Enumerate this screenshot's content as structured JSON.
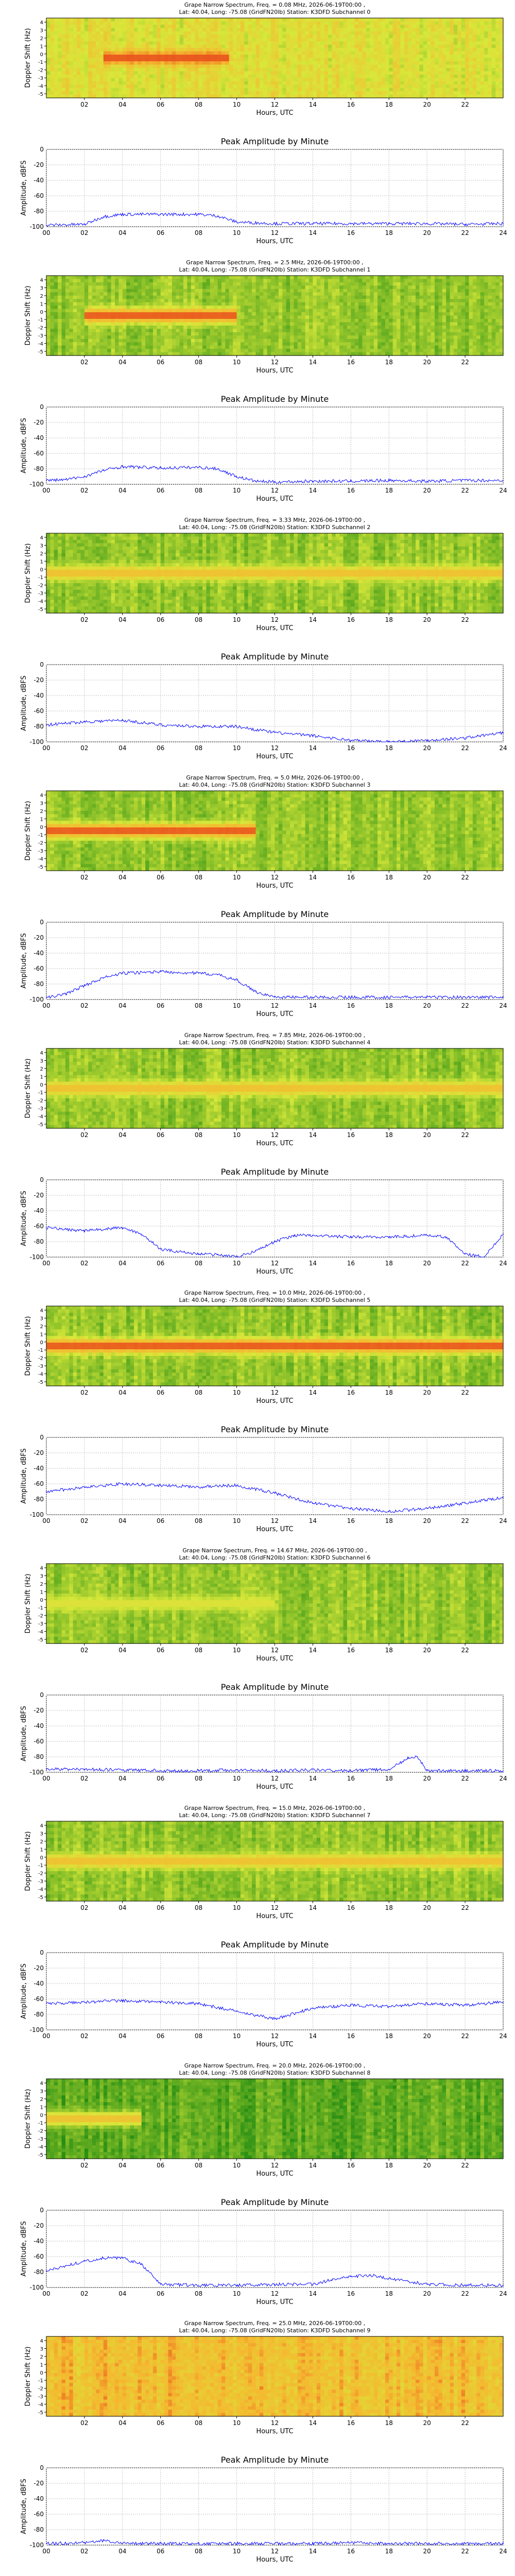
{
  "common": {
    "spec_hours": [
      "02",
      "04",
      "06",
      "08",
      "10",
      "12",
      "14",
      "16",
      "18",
      "20",
      "22"
    ],
    "spec_yticks": [
      "4",
      "3",
      "2",
      "1",
      "0",
      "-1",
      "-2",
      "-3",
      "-4",
      "-5"
    ],
    "spec_ylabel": "Doppler Shift (Hz)",
    "xlabel": "Hours, UTC",
    "amp_title": "Peak Amplitude by Minute",
    "amp_ylabel": "Amplitude, dBFS",
    "amp_yticks": [
      "0",
      "-20",
      "-40",
      "-60",
      "-80",
      "-100"
    ],
    "amp_xticks": [
      "00",
      "02",
      "04",
      "06",
      "08",
      "10",
      "12",
      "14",
      "16",
      "18",
      "20",
      "22",
      "24"
    ],
    "title_line2": "Lat:  40.04, Long: -75.08 (GridFN20lb) Station: K3DFD"
  },
  "colors": {
    "spec_low": "#1f8a12",
    "spec_mid": "#d8e83a",
    "spec_high": "#f5b830",
    "spec_peak": "#e8501c",
    "amp_line": "#0000ff",
    "grid": "#bfbfbf"
  },
  "panels": [
    {
      "freq_line": "Grape Narrow Spectrum, Freq. = 0.08 MHz, 2026-06-19T00:00 ,",
      "subchannel": "Subchannel 0"
    },
    {
      "freq_line": "Grape Narrow Spectrum, Freq. = 2.5 MHz, 2026-06-19T00:00 ,",
      "subchannel": "Subchannel 1"
    },
    {
      "freq_line": "Grape Narrow Spectrum, Freq. = 3.33 MHz, 2026-06-19T00:00 ,",
      "subchannel": "Subchannel 2"
    },
    {
      "freq_line": "Grape Narrow Spectrum, Freq. = 5.0 MHz, 2026-06-19T00:00 ,",
      "subchannel": "Subchannel 3"
    },
    {
      "freq_line": "Grape Narrow Spectrum, Freq. = 7.85 MHz, 2026-06-19T00:00 ,",
      "subchannel": "Subchannel 4"
    },
    {
      "freq_line": "Grape Narrow Spectrum, Freq. = 10.0 MHz, 2026-06-19T00:00 ,",
      "subchannel": "Subchannel 5"
    },
    {
      "freq_line": "Grape Narrow Spectrum, Freq. = 14.67 MHz, 2026-06-19T00:00 ,",
      "subchannel": "Subchannel 6"
    },
    {
      "freq_line": "Grape Narrow Spectrum, Freq. = 15.0 MHz, 2026-06-19T00:00 ,",
      "subchannel": "Subchannel 7"
    },
    {
      "freq_line": "Grape Narrow Spectrum, Freq. = 20.0 MHz, 2026-06-19T00:00 ,",
      "subchannel": "Subchannel 8"
    },
    {
      "freq_line": "Grape Narrow Spectrum, Freq. = 25.0 MHz, 2026-06-19T00:00 ,",
      "subchannel": "Subchannel 9"
    }
  ],
  "chart_data": [
    {
      "type": "heatmap",
      "title": "Grape Narrow Spectrum, Freq. = 0.08 MHz, 2026-06-19T00:00 ,",
      "xlabel": "Hours, UTC",
      "ylabel": "Doppler Shift (Hz)",
      "xlim": [
        0,
        24
      ],
      "ylim": [
        -5,
        5
      ],
      "background": "yellow-green",
      "signal": {
        "doppler_hz": 0,
        "start_hr": 3,
        "end_hr": 9.5,
        "intensity": "high"
      }
    },
    {
      "type": "line",
      "title": "Peak Amplitude by Minute",
      "xlabel": "Hours, UTC",
      "ylabel": "Amplitude, dBFS",
      "ylim": [
        -100,
        0
      ],
      "x": [
        0,
        2,
        3,
        4,
        6,
        8,
        9,
        10,
        12,
        14,
        16,
        18,
        20,
        22,
        24
      ],
      "y": [
        -98,
        -97,
        -87,
        -84,
        -84,
        -84,
        -86,
        -94,
        -96,
        -96,
        -96,
        -96,
        -96,
        -97,
        -96
      ]
    },
    {
      "type": "heatmap",
      "title": "Grape Narrow Spectrum, Freq. = 2.5 MHz, 2026-06-19T00:00 ,",
      "xlabel": "Hours, UTC",
      "ylabel": "Doppler Shift (Hz)",
      "xlim": [
        0,
        24
      ],
      "ylim": [
        -5,
        5
      ],
      "background": "green",
      "signal": {
        "doppler_hz": 0,
        "start_hr": 2,
        "end_hr": 10,
        "intensity": "high"
      }
    },
    {
      "type": "line",
      "title": "Peak Amplitude by Minute",
      "xlabel": "Hours, UTC",
      "ylabel": "Amplitude, dBFS",
      "ylim": [
        -100,
        0
      ],
      "x": [
        0,
        1,
        2,
        3,
        4,
        6,
        8,
        9,
        10,
        11,
        12,
        14,
        16,
        18,
        20,
        22,
        24
      ],
      "y": [
        -95,
        -94,
        -90,
        -82,
        -77,
        -79,
        -78,
        -80,
        -90,
        -96,
        -97,
        -96,
        -96,
        -95,
        -96,
        -95,
        -95
      ]
    },
    {
      "type": "heatmap",
      "title": "Grape Narrow Spectrum, Freq. = 3.33 MHz, 2026-06-19T00:00 ,",
      "xlabel": "Hours, UTC",
      "ylabel": "Doppler Shift (Hz)",
      "xlim": [
        0,
        24
      ],
      "ylim": [
        -5,
        5
      ],
      "background": "green",
      "signal": {
        "doppler_hz": 0,
        "start_hr": 0,
        "end_hr": 24,
        "intensity": "medium"
      }
    },
    {
      "type": "line",
      "title": "Peak Amplitude by Minute",
      "xlabel": "Hours, UTC",
      "ylabel": "Amplitude, dBFS",
      "ylim": [
        -100,
        0
      ],
      "x": [
        0,
        2,
        4,
        6,
        8,
        10,
        12,
        14,
        16,
        18,
        20,
        22,
        24
      ],
      "y": [
        -78,
        -74,
        -72,
        -78,
        -80,
        -80,
        -88,
        -92,
        -98,
        -100,
        -98,
        -95,
        -88
      ]
    },
    {
      "type": "heatmap",
      "title": "Grape Narrow Spectrum, Freq. = 5.0 MHz, 2026-06-19T00:00 ,",
      "xlabel": "Hours, UTC",
      "ylabel": "Doppler Shift (Hz)",
      "xlim": [
        0,
        24
      ],
      "ylim": [
        -5,
        5
      ],
      "background": "green",
      "signal": {
        "doppler_hz": 0,
        "start_hr": 0,
        "end_hr": 11,
        "intensity": "high"
      }
    },
    {
      "type": "line",
      "title": "Peak Amplitude by Minute",
      "xlabel": "Hours, UTC",
      "ylabel": "Amplitude, dBFS",
      "ylim": [
        -100,
        0
      ],
      "x": [
        0,
        1,
        2,
        3,
        4,
        6,
        8,
        9,
        10,
        11,
        12,
        14,
        16,
        18,
        20,
        22,
        24
      ],
      "y": [
        -98,
        -93,
        -82,
        -72,
        -66,
        -64,
        -66,
        -68,
        -75,
        -90,
        -97,
        -97,
        -97,
        -97,
        -97,
        -97,
        -97
      ]
    },
    {
      "type": "heatmap",
      "title": "Grape Narrow Spectrum, Freq. = 7.85 MHz, 2026-06-19T00:00 ,",
      "xlabel": "Hours, UTC",
      "ylabel": "Doppler Shift (Hz)",
      "xlim": [
        0,
        24
      ],
      "ylim": [
        -5,
        5
      ],
      "background": "green",
      "signal": {
        "doppler_hz": 0,
        "start_hr": 0,
        "end_hr": 24,
        "intensity": "medium"
      }
    },
    {
      "type": "line",
      "title": "Peak Amplitude by Minute",
      "xlabel": "Hours, UTC",
      "ylabel": "Amplitude, dBFS",
      "ylim": [
        -100,
        0
      ],
      "x": [
        0,
        2,
        4,
        5,
        6,
        8,
        9,
        10,
        11,
        12,
        13,
        14,
        16,
        18,
        20,
        21,
        22,
        23,
        24
      ],
      "y": [
        -62,
        -66,
        -62,
        -70,
        -90,
        -96,
        -97,
        -100,
        -92,
        -80,
        -72,
        -72,
        -74,
        -74,
        -72,
        -74,
        -96,
        -100,
        -70
      ]
    },
    {
      "type": "heatmap",
      "title": "Grape Narrow Spectrum, Freq. = 10.0 MHz, 2026-06-19T00:00 ,",
      "xlabel": "Hours, UTC",
      "ylabel": "Doppler Shift (Hz)",
      "xlim": [
        0,
        24
      ],
      "ylim": [
        -5,
        5
      ],
      "background": "green",
      "signal": {
        "doppler_hz": 0,
        "start_hr": 0,
        "end_hr": 24,
        "intensity": "high"
      }
    },
    {
      "type": "line",
      "title": "Peak Amplitude by Minute",
      "xlabel": "Hours, UTC",
      "ylabel": "Amplitude, dBFS",
      "ylim": [
        -100,
        0
      ],
      "x": [
        0,
        2,
        4,
        6,
        8,
        10,
        12,
        14,
        16,
        18,
        20,
        22,
        24
      ],
      "y": [
        -70,
        -65,
        -60,
        -62,
        -64,
        -62,
        -72,
        -85,
        -92,
        -96,
        -92,
        -85,
        -78
      ]
    },
    {
      "type": "heatmap",
      "title": "Grape Narrow Spectrum, Freq. = 14.67 MHz, 2026-06-19T00:00 ,",
      "xlabel": "Hours, UTC",
      "ylabel": "Doppler Shift (Hz)",
      "xlim": [
        0,
        24
      ],
      "ylim": [
        -5,
        5
      ],
      "background": "green",
      "signal": {
        "doppler_hz": 0,
        "start_hr": 0,
        "end_hr": 12,
        "intensity": "low"
      }
    },
    {
      "type": "line",
      "title": "Peak Amplitude by Minute",
      "xlabel": "Hours, UTC",
      "ylabel": "Amplitude, dBFS",
      "ylim": [
        -100,
        0
      ],
      "x": [
        0,
        2,
        4,
        6,
        8,
        10,
        12,
        14,
        16,
        18,
        19,
        19.5,
        20,
        22,
        24
      ],
      "y": [
        -96,
        -96,
        -97,
        -98,
        -98,
        -97,
        -98,
        -97,
        -98,
        -96,
        -82,
        -80,
        -98,
        -98,
        -98
      ]
    },
    {
      "type": "heatmap",
      "title": "Grape Narrow Spectrum, Freq. = 15.0 MHz, 2026-06-19T00:00 ,",
      "xlabel": "Hours, UTC",
      "ylabel": "Doppler Shift (Hz)",
      "xlim": [
        0,
        24
      ],
      "ylim": [
        -5,
        5
      ],
      "background": "green",
      "signal": {
        "doppler_hz": 0,
        "start_hr": 0,
        "end_hr": 24,
        "intensity": "medium"
      }
    },
    {
      "type": "line",
      "title": "Peak Amplitude by Minute",
      "xlabel": "Hours, UTC",
      "ylabel": "Amplitude, dBFS",
      "ylim": [
        -100,
        0
      ],
      "x": [
        0,
        2,
        4,
        6,
        8,
        10,
        12,
        14,
        16,
        18,
        20,
        22,
        24
      ],
      "y": [
        -66,
        -64,
        -62,
        -64,
        -66,
        -76,
        -86,
        -72,
        -68,
        -70,
        -66,
        -68,
        -64
      ]
    },
    {
      "type": "heatmap",
      "title": "Grape Narrow Spectrum, Freq. = 20.0 MHz, 2026-06-19T00:00 ,",
      "xlabel": "Hours, UTC",
      "ylabel": "Doppler Shift (Hz)",
      "xlim": [
        0,
        24
      ],
      "ylim": [
        -5,
        5
      ],
      "background": "dark-green",
      "signal": {
        "doppler_hz": 0,
        "start_hr": 0,
        "end_hr": 5,
        "intensity": "medium"
      }
    },
    {
      "type": "line",
      "title": "Peak Amplitude by Minute",
      "xlabel": "Hours, UTC",
      "ylabel": "Amplitude, dBFS",
      "ylim": [
        -100,
        0
      ],
      "x": [
        0,
        1,
        2,
        3,
        4,
        5,
        6,
        8,
        10,
        12,
        14,
        15,
        16,
        17,
        18,
        19,
        20,
        22,
        24
      ],
      "y": [
        -78,
        -72,
        -66,
        -62,
        -62,
        -70,
        -96,
        -97,
        -97,
        -96,
        -96,
        -90,
        -86,
        -84,
        -88,
        -92,
        -96,
        -97,
        -97
      ]
    },
    {
      "type": "heatmap",
      "title": "Grape Narrow Spectrum, Freq. = 25.0 MHz, 2026-06-19T00:00 ,",
      "xlabel": "Hours, UTC",
      "ylabel": "Doppler Shift (Hz)",
      "xlim": [
        0,
        24
      ],
      "ylim": [
        -5,
        5
      ],
      "background": "yellow",
      "signal": {
        "doppler_hz": 0,
        "start_hr": 2,
        "end_hr": 3,
        "intensity": "low"
      }
    },
    {
      "type": "line",
      "title": "Peak Amplitude by Minute",
      "xlabel": "Hours, UTC",
      "ylabel": "Amplitude, dBFS",
      "ylim": [
        -100,
        0
      ],
      "x": [
        0,
        2,
        3,
        4,
        6,
        8,
        10,
        12,
        14,
        16,
        18,
        20,
        22,
        24
      ],
      "y": [
        -98,
        -97,
        -94,
        -98,
        -98,
        -98,
        -98,
        -98,
        -98,
        -97,
        -98,
        -98,
        -98,
        -98
      ]
    }
  ]
}
